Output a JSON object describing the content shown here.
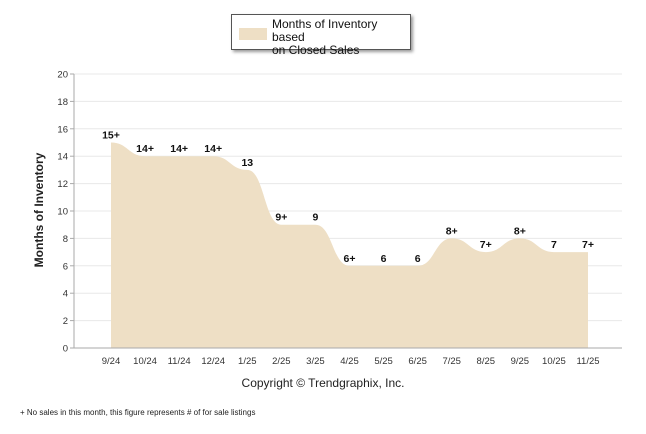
{
  "chart_data": {
    "type": "area",
    "title": "",
    "xlabel": "",
    "ylabel": "Months of Inventory",
    "ylim": [
      0,
      20
    ],
    "yticks": [
      0,
      2,
      4,
      6,
      8,
      10,
      12,
      14,
      16,
      18,
      20
    ],
    "grid": true,
    "categories": [
      "9/24",
      "10/24",
      "11/24",
      "12/24",
      "1/25",
      "2/25",
      "3/25",
      "4/25",
      "5/25",
      "6/25",
      "7/25",
      "8/25",
      "9/25",
      "10/25",
      "11/25"
    ],
    "series": [
      {
        "name": "Months of Inventory based on Closed Sales",
        "values": [
          15,
          14,
          14,
          14,
          13,
          9,
          9,
          6,
          6,
          6,
          8,
          7,
          8,
          7,
          7
        ],
        "labels": [
          "15+",
          "14+",
          "14+",
          "14+",
          "13",
          "9+",
          "9",
          "6+",
          "6",
          "6",
          "8+",
          "7+",
          "8+",
          "7",
          "7+"
        ],
        "color": "#eedfc5"
      }
    ],
    "legend": {
      "position": "top-center",
      "line1": "Months of Inventory based",
      "line2": "on Closed Sales"
    }
  },
  "copyright": "Copyright © Trendgraphix, Inc.",
  "footnote": "+  No sales in this month, this figure represents # of for sale listings",
  "colors": {
    "fill": "#eedfc5",
    "grid": "#e8e8e8",
    "axis": "#aaaaaa"
  }
}
